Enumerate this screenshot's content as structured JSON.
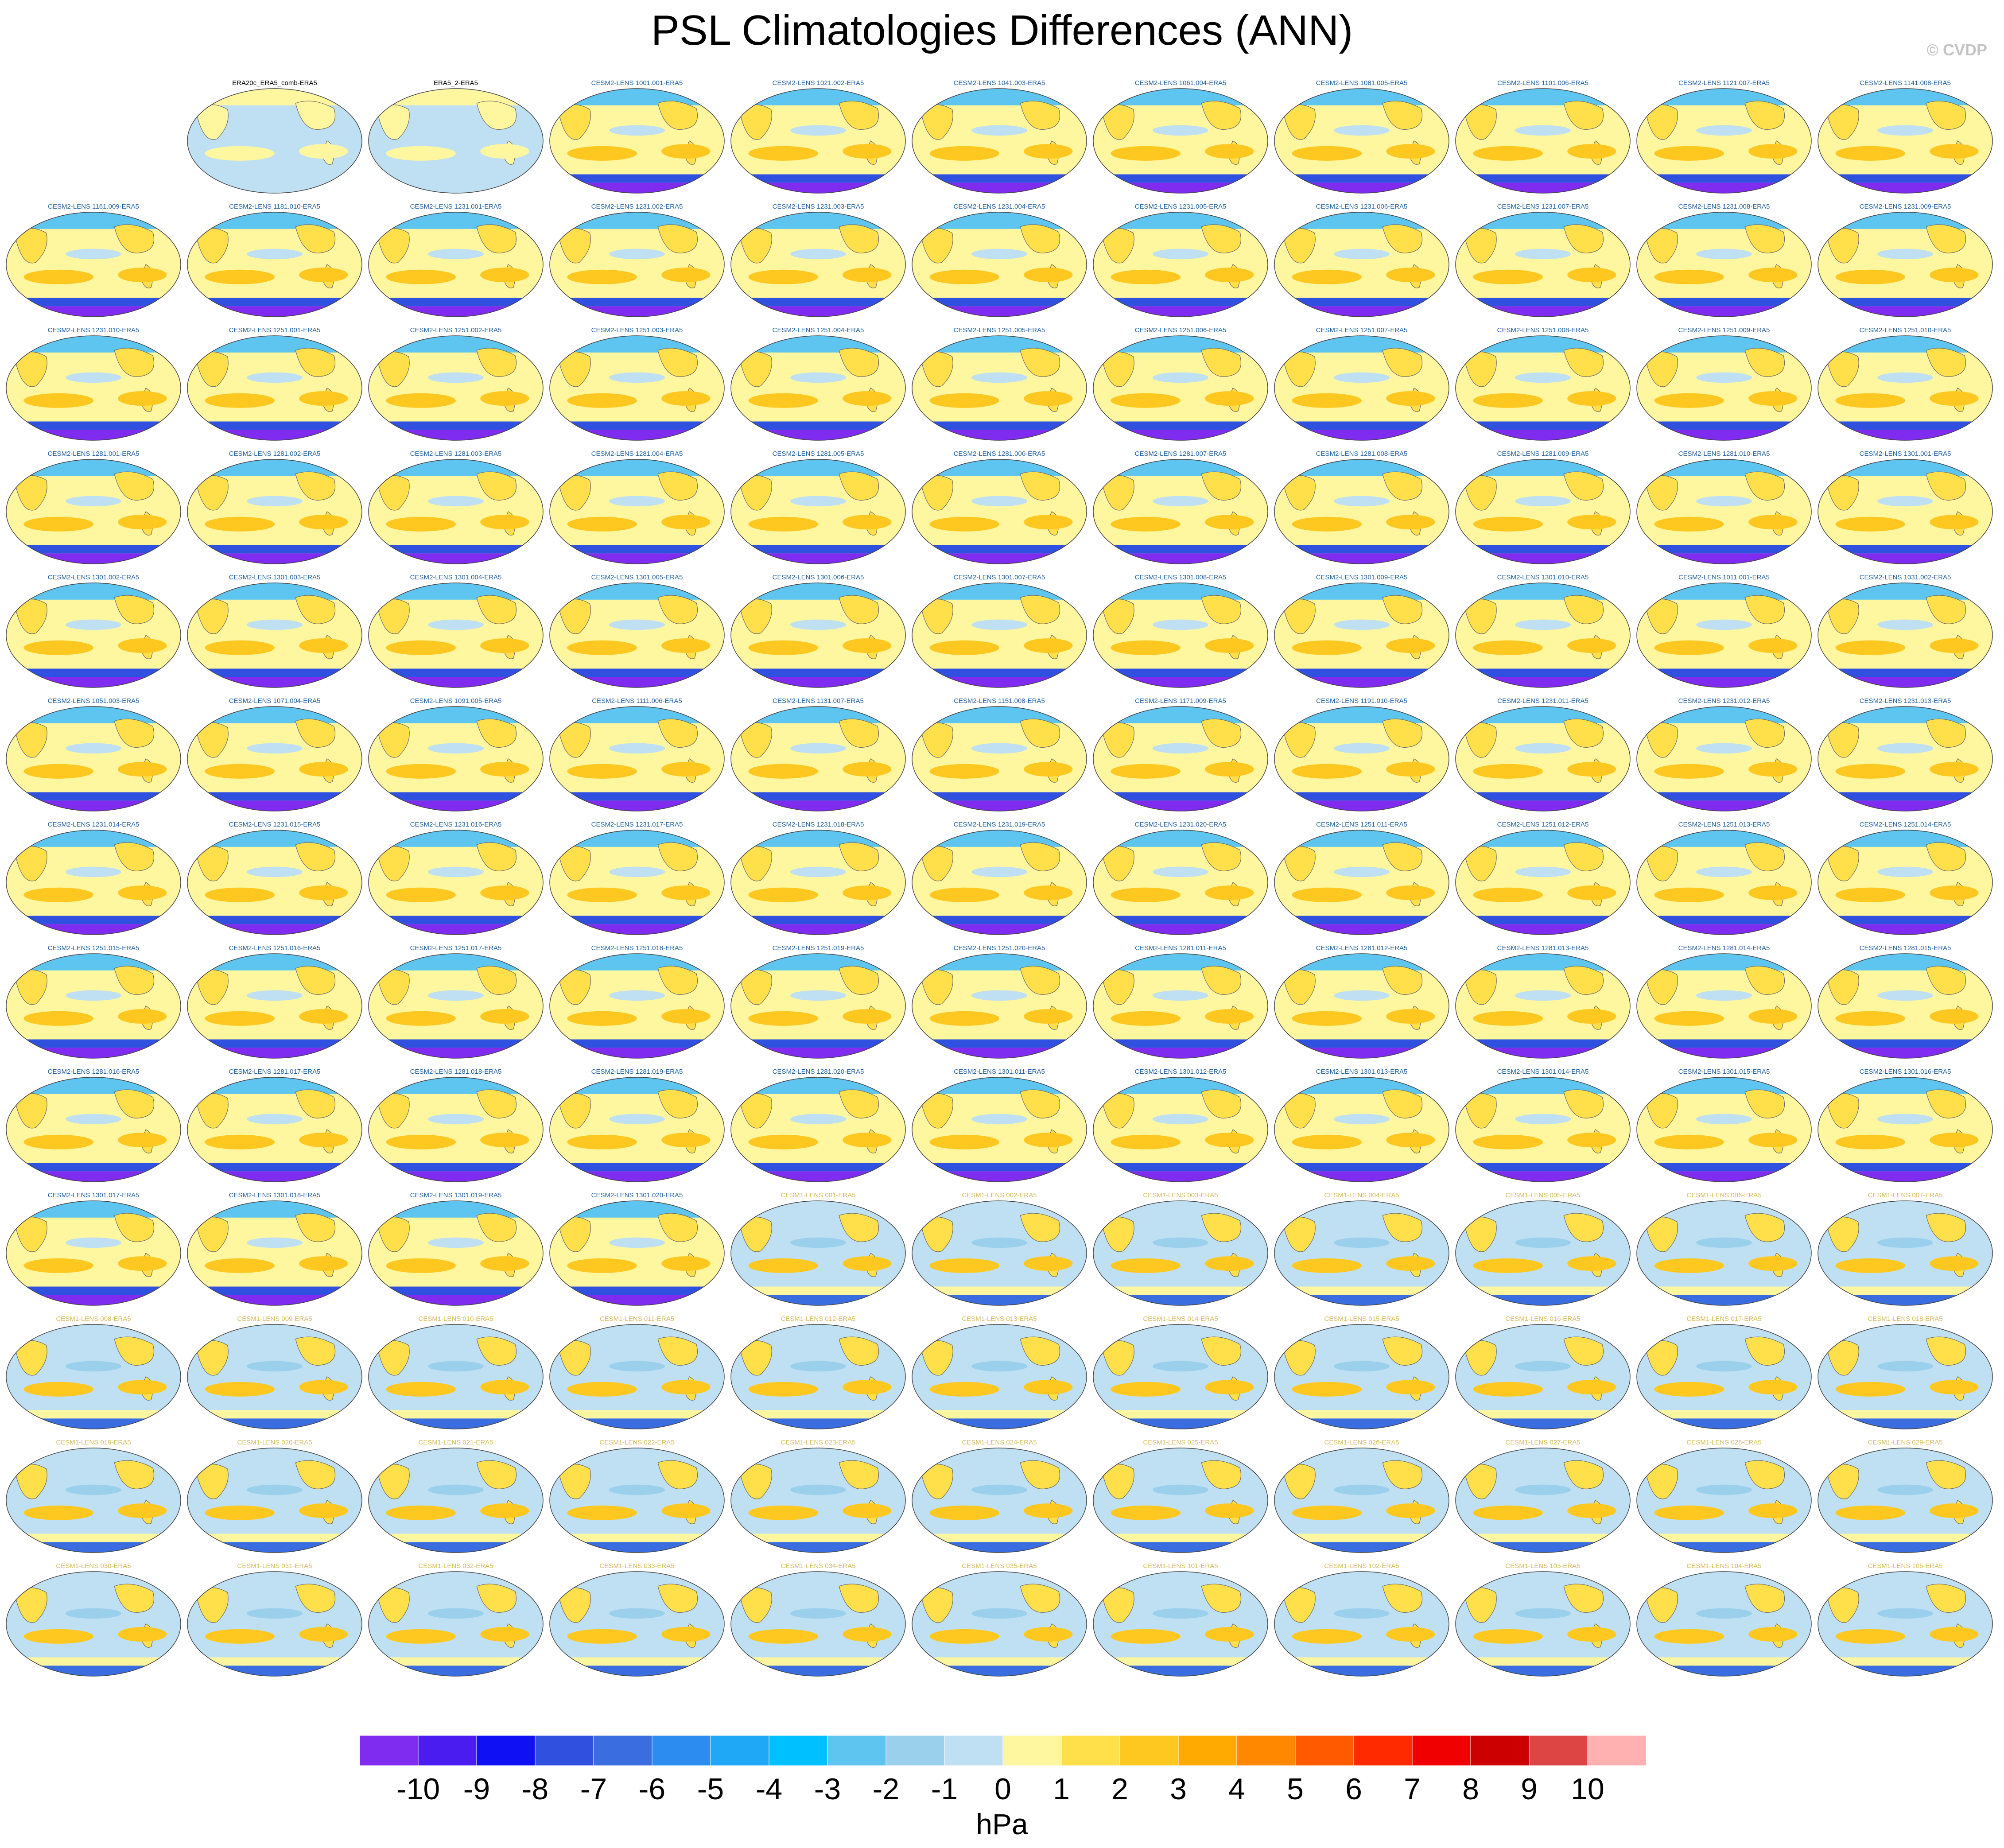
{
  "title": "PSL Climatologies Differences (ANN)",
  "copyright": "© CVDP",
  "units": "hPa",
  "colorbar": {
    "ticks": [
      "-10",
      "-9",
      "-8",
      "-7",
      "-6",
      "-5",
      "-4",
      "-3",
      "-2",
      "-1",
      "0",
      "1",
      "2",
      "3",
      "4",
      "5",
      "6",
      "7",
      "8",
      "9",
      "10"
    ],
    "colors": [
      "#7f2bf0",
      "#4b1cf0",
      "#1010f5",
      "#3050e0",
      "#3a6ee0",
      "#2d8cf0",
      "#1ea8f5",
      "#00c0ff",
      "#5ec4f0",
      "#9bd0ec",
      "#bfe0f2",
      "#fff6a0",
      "#ffe04a",
      "#ffc820",
      "#ffaa00",
      "#ff8800",
      "#ff5a00",
      "#ff2a00",
      "#f00000",
      "#cc0000",
      "#dd4444",
      "#ffb0b0"
    ]
  },
  "panels": [
    [
      "",
      "ERA20c_ERA5_comb-ERA5",
      "ERA5_2-ERA5",
      "CESM2-LENS 1001.001-ERA5",
      "CESM2-LENS 1021.002-ERA5",
      "CESM2-LENS 1041.003-ERA5",
      "CESM2-LENS 1061.004-ERA5",
      "CESM2-LENS 1081.005-ERA5",
      "CESM2-LENS 1101.006-ERA5",
      "CESM2-LENS 1121.007-ERA5",
      "CESM2-LENS 1141.008-ERA5"
    ],
    [
      "CESM2-LENS 1161.009-ERA5",
      "CESM2-LENS 1181.010-ERA5",
      "CESM2-LENS 1231.001-ERA5",
      "CESM2-LENS 1231.002-ERA5",
      "CESM2-LENS 1231.003-ERA5",
      "CESM2-LENS 1231.004-ERA5",
      "CESM2-LENS 1231.005-ERA5",
      "CESM2-LENS 1231.006-ERA5",
      "CESM2-LENS 1231.007-ERA5",
      "CESM2-LENS 1231.008-ERA5",
      "CESM2-LENS 1231.009-ERA5"
    ],
    [
      "CESM2-LENS 1231.010-ERA5",
      "CESM2-LENS 1251.001-ERA5",
      "CESM2-LENS 1251.002-ERA5",
      "CESM2-LENS 1251.003-ERA5",
      "CESM2-LENS 1251.004-ERA5",
      "CESM2-LENS 1251.005-ERA5",
      "CESM2-LENS 1251.006-ERA5",
      "CESM2-LENS 1251.007-ERA5",
      "CESM2-LENS 1251.008-ERA5",
      "CESM2-LENS 1251.009-ERA5",
      "CESM2-LENS 1251.010-ERA5"
    ],
    [
      "CESM2-LENS 1281.001-ERA5",
      "CESM2-LENS 1281.002-ERA5",
      "CESM2-LENS 1281.003-ERA5",
      "CESM2-LENS 1281.004-ERA5",
      "CESM2-LENS 1281.005-ERA5",
      "CESM2-LENS 1281.006-ERA5",
      "CESM2-LENS 1281.007-ERA5",
      "CESM2-LENS 1281.008-ERA5",
      "CESM2-LENS 1281.009-ERA5",
      "CESM2-LENS 1281.010-ERA5",
      "CESM2-LENS 1301.001-ERA5"
    ],
    [
      "CESM2-LENS 1301.002-ERA5",
      "CESM2-LENS 1301.003-ERA5",
      "CESM2-LENS 1301.004-ERA5",
      "CESM2-LENS 1301.005-ERA5",
      "CESM2-LENS 1301.006-ERA5",
      "CESM2-LENS 1301.007-ERA5",
      "CESM2-LENS 1301.008-ERA5",
      "CESM2-LENS 1301.009-ERA5",
      "CESM2-LENS 1301.010-ERA5",
      "CESM2-LENS 1011.001-ERA5",
      "CESM2-LENS 1031.002-ERA5"
    ],
    [
      "CESM2-LENS 1051.003-ERA5",
      "CESM2-LENS 1071.004-ERA5",
      "CESM2-LENS 1091.005-ERA5",
      "CESM2-LENS 1111.006-ERA5",
      "CESM2-LENS 1131.007-ERA5",
      "CESM2-LENS 1151.008-ERA5",
      "CESM2-LENS 1171.009-ERA5",
      "CESM2-LENS 1191.010-ERA5",
      "CESM2-LENS 1231.011-ERA5",
      "CESM2-LENS 1231.012-ERA5",
      "CESM2-LENS 1231.013-ERA5"
    ],
    [
      "CESM2-LENS 1231.014-ERA5",
      "CESM2-LENS 1231.015-ERA5",
      "CESM2-LENS 1231.016-ERA5",
      "CESM2-LENS 1231.017-ERA5",
      "CESM2-LENS 1231.018-ERA5",
      "CESM2-LENS 1231.019-ERA5",
      "CESM2-LENS 1231.020-ERA5",
      "CESM2-LENS 1251.011-ERA5",
      "CESM2-LENS 1251.012-ERA5",
      "CESM2-LENS 1251.013-ERA5",
      "CESM2-LENS 1251.014-ERA5"
    ],
    [
      "CESM2-LENS 1251.015-ERA5",
      "CESM2-LENS 1251.016-ERA5",
      "CESM2-LENS 1251.017-ERA5",
      "CESM2-LENS 1251.018-ERA5",
      "CESM2-LENS 1251.019-ERA5",
      "CESM2-LENS 1251.020-ERA5",
      "CESM2-LENS 1281.011-ERA5",
      "CESM2-LENS 1281.012-ERA5",
      "CESM2-LENS 1281.013-ERA5",
      "CESM2-LENS 1281.014-ERA5",
      "CESM2-LENS 1281.015-ERA5"
    ],
    [
      "CESM2-LENS 1281.016-ERA5",
      "CESM2-LENS 1281.017-ERA5",
      "CESM2-LENS 1281.018-ERA5",
      "CESM2-LENS 1281.019-ERA5",
      "CESM2-LENS 1281.020-ERA5",
      "CESM2-LENS 1301.011-ERA5",
      "CESM2-LENS 1301.012-ERA5",
      "CESM2-LENS 1301.013-ERA5",
      "CESM2-LENS 1301.014-ERA5",
      "CESM2-LENS 1301.015-ERA5",
      "CESM2-LENS 1301.016-ERA5"
    ],
    [
      "CESM2-LENS 1301.017-ERA5",
      "CESM2-LENS 1301.018-ERA5",
      "CESM2-LENS 1301.019-ERA5",
      "CESM2-LENS 1301.020-ERA5",
      "CESM1-LENS 001-ERA5",
      "CESM1-LENS 002-ERA5",
      "CESM1-LENS 003-ERA5",
      "CESM1-LENS 004-ERA5",
      "CESM1-LENS 005-ERA5",
      "CESM1-LENS 006-ERA5",
      "CESM1-LENS 007-ERA5"
    ],
    [
      "CESM1-LENS 008-ERA5",
      "CESM1-LENS 009-ERA5",
      "CESM1-LENS 010-ERA5",
      "CESM1-LENS 011-ERA5",
      "CESM1-LENS 012-ERA5",
      "CESM1-LENS 013-ERA5",
      "CESM1-LENS 014-ERA5",
      "CESM1-LENS 015-ERA5",
      "CESM1-LENS 016-ERA5",
      "CESM1-LENS 017-ERA5",
      "CESM1-LENS 018-ERA5"
    ],
    [
      "CESM1-LENS 019-ERA5",
      "CESM1-LENS 020-ERA5",
      "CESM1-LENS 021-ERA5",
      "CESM1-LENS 022-ERA5",
      "CESM1-LENS 023-ERA5",
      "CESM1-LENS 024-ERA5",
      "CESM1-LENS 025-ERA5",
      "CESM1-LENS 026-ERA5",
      "CESM1-LENS 027-ERA5",
      "CESM1-LENS 028-ERA5",
      "CESM1-LENS 029-ERA5"
    ],
    [
      "CESM1-LENS 030-ERA5",
      "CESM1-LENS 031-ERA5",
      "CESM1-LENS 032-ERA5",
      "CESM1-LENS 033-ERA5",
      "CESM1-LENS 034-ERA5",
      "CESM1-LENS 035-ERA5",
      "CESM1-LENS 101-ERA5",
      "CESM1-LENS 102-ERA5",
      "CESM1-LENS 103-ERA5",
      "CESM1-LENS 104-ERA5",
      "CESM1-LENS 105-ERA5"
    ]
  ],
  "label_colors": {
    "ERA": "#000000",
    "CESM2": "#1f5fa0",
    "CESM1": "#d8b85a"
  },
  "map_styles": {
    "ERA": {
      "ocean": "#bfe0f2",
      "land": "#fff6a0",
      "warm": "#fff6a0",
      "cool": "#bfe0f2",
      "south": "#bfe0f2",
      "deep": "#bfe0f2",
      "north": "#fff6a0"
    },
    "CESM2": {
      "ocean": "#fff6a0",
      "land": "#ffe04a",
      "warm": "#ffc820",
      "cool": "#bfe0f2",
      "south": "#3050e0",
      "deep": "#7f2bf0",
      "north": "#5ec4f0"
    },
    "CESM1": {
      "ocean": "#bfe0f2",
      "land": "#ffe04a",
      "warm": "#ffc820",
      "cool": "#9bd0ec",
      "south": "#fff6a0",
      "deep": "#3a6ee0",
      "north": "#bfe0f2"
    }
  }
}
